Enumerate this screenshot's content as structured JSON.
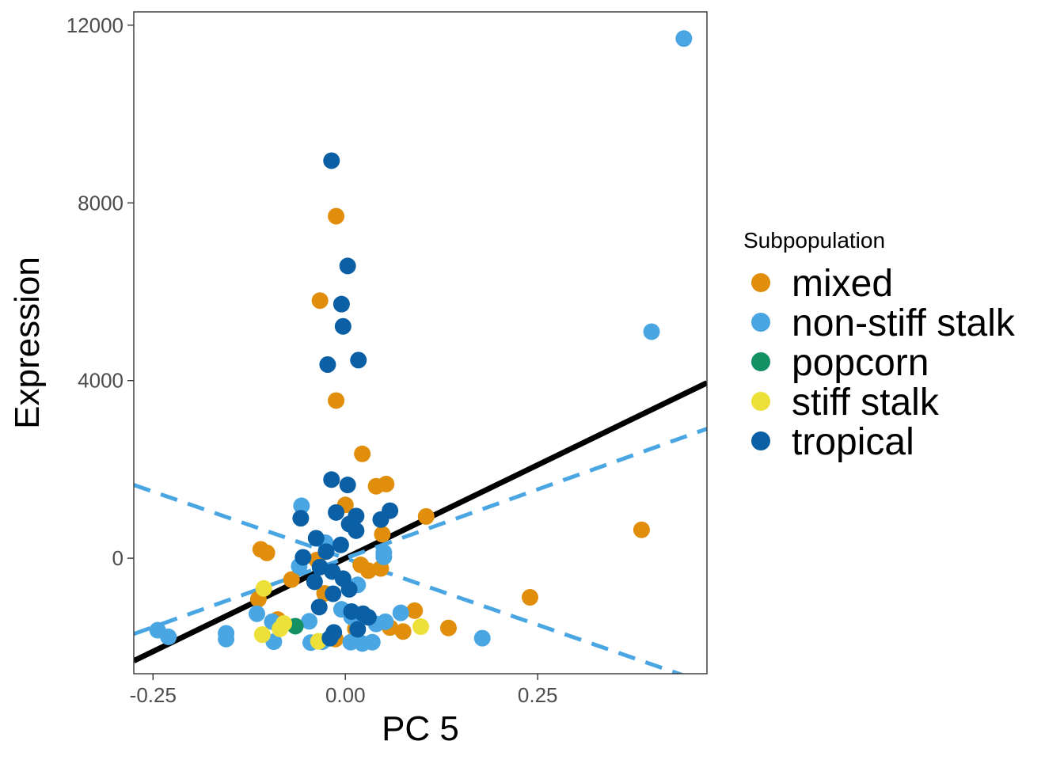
{
  "chart_data": {
    "type": "scatter",
    "title": "",
    "xlabel": "PC 5",
    "ylabel": "Expression",
    "xlim": [
      -0.275,
      0.47
    ],
    "ylim": [
      -2600,
      12300
    ],
    "xticks": [
      -0.25,
      0.0,
      0.25
    ],
    "xtick_labels": [
      "-0.25",
      "0.00",
      "0.25"
    ],
    "yticks": [
      0,
      4000,
      8000,
      12000
    ],
    "ytick_labels": [
      "0",
      "4000",
      "8000",
      "12000"
    ],
    "grid": false,
    "legend": {
      "title": "Subpopulation",
      "position": "right"
    },
    "colors": {
      "mixed": "#E08E0B",
      "non-stiff stalk": "#4AA6E2",
      "popcorn": "#149164",
      "stiff stalk": "#EDE03A",
      "tropical": "#0B60A5",
      "overall_fit": "#000000",
      "group_fit": "#4AA6E2"
    },
    "series": [
      {
        "name": "mixed",
        "points": [
          [
            -0.012,
            7700
          ],
          [
            -0.033,
            5800
          ],
          [
            -0.012,
            3550
          ],
          [
            0.022,
            2350
          ],
          [
            0.04,
            1620
          ],
          [
            0.053,
            1670
          ],
          [
            0.0,
            1200
          ],
          [
            -0.11,
            200
          ],
          [
            -0.102,
            120
          ],
          [
            -0.113,
            -920
          ],
          [
            -0.07,
            -480
          ],
          [
            -0.037,
            -40
          ],
          [
            -0.027,
            -790
          ],
          [
            0.02,
            -150
          ],
          [
            0.03,
            -280
          ],
          [
            0.046,
            -230
          ],
          [
            0.09,
            -1180
          ],
          [
            0.105,
            940
          ],
          [
            0.134,
            -1570
          ],
          [
            0.24,
            -880
          ],
          [
            0.385,
            640
          ],
          [
            -0.013,
            -1820
          ],
          [
            0.013,
            -1590
          ],
          [
            0.058,
            -1560
          ],
          [
            0.075,
            -1650
          ],
          [
            -0.088,
            -1380
          ],
          [
            0.048,
            540
          ]
        ]
      },
      {
        "name": "non-stiff stalk",
        "points": [
          [
            0.44,
            11700
          ],
          [
            0.398,
            5100
          ],
          [
            -0.057,
            1180
          ],
          [
            -0.244,
            -1620
          ],
          [
            -0.23,
            -1770
          ],
          [
            -0.155,
            -1690
          ],
          [
            -0.155,
            -1820
          ],
          [
            -0.115,
            -1250
          ],
          [
            -0.095,
            -1430
          ],
          [
            -0.093,
            -1880
          ],
          [
            -0.045,
            -1900
          ],
          [
            -0.03,
            -1880
          ],
          [
            -0.047,
            -1420
          ],
          [
            0.007,
            -1890
          ],
          [
            0.022,
            -1920
          ],
          [
            0.035,
            -1890
          ],
          [
            0.008,
            -1320
          ],
          [
            0.016,
            -600
          ],
          [
            0.05,
            130
          ],
          [
            0.05,
            30
          ],
          [
            0.072,
            -1230
          ],
          [
            0.04,
            -1480
          ],
          [
            0.052,
            -1430
          ],
          [
            0.178,
            -1800
          ],
          [
            -0.026,
            350
          ],
          [
            -0.005,
            -1150
          ],
          [
            -0.06,
            -180
          ]
        ]
      },
      {
        "name": "popcorn",
        "points": [
          [
            -0.065,
            -1530
          ]
        ]
      },
      {
        "name": "stiff stalk",
        "points": [
          [
            -0.106,
            -680
          ],
          [
            -0.108,
            -1720
          ],
          [
            -0.085,
            -1590
          ],
          [
            -0.035,
            -1870
          ],
          [
            0.098,
            -1540
          ],
          [
            -0.08,
            -1470
          ]
        ]
      },
      {
        "name": "tropical",
        "points": [
          [
            -0.018,
            8950
          ],
          [
            0.003,
            6580
          ],
          [
            -0.005,
            5720
          ],
          [
            -0.003,
            5220
          ],
          [
            -0.023,
            4360
          ],
          [
            0.017,
            4460
          ],
          [
            -0.018,
            1770
          ],
          [
            0.003,
            1650
          ],
          [
            0.014,
            950
          ],
          [
            0.058,
            1070
          ],
          [
            0.046,
            870
          ],
          [
            -0.012,
            1030
          ],
          [
            -0.058,
            900
          ],
          [
            0.005,
            770
          ],
          [
            0.014,
            620
          ],
          [
            -0.038,
            450
          ],
          [
            -0.025,
            150
          ],
          [
            -0.006,
            300
          ],
          [
            -0.055,
            20
          ],
          [
            -0.033,
            -200
          ],
          [
            -0.017,
            -300
          ],
          [
            -0.04,
            -530
          ],
          [
            -0.003,
            -460
          ],
          [
            0.005,
            -700
          ],
          [
            -0.016,
            -800
          ],
          [
            -0.034,
            -1100
          ],
          [
            0.008,
            -1200
          ],
          [
            0.023,
            -1250
          ],
          [
            0.03,
            -1330
          ],
          [
            0.016,
            -1600
          ],
          [
            -0.015,
            -1670
          ],
          [
            -0.02,
            -1800
          ]
        ]
      }
    ],
    "fit_lines": [
      {
        "name": "overall trend",
        "style": "solid",
        "slope": 8400,
        "intercept": 0
      },
      {
        "name": "group trend rising",
        "style": "dashed",
        "slope": 6200,
        "intercept": 0
      },
      {
        "name": "group trend falling",
        "style": "dashed",
        "slope": -6000,
        "intercept": 0
      }
    ]
  }
}
